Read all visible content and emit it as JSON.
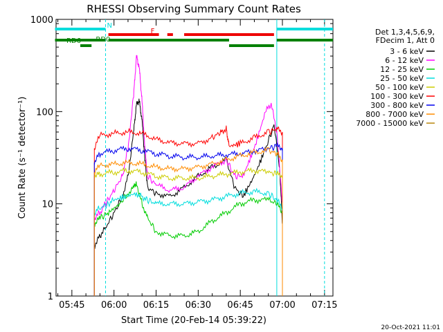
{
  "chart_data": {
    "type": "line",
    "title": "RHESSI Observing Summary Count Rates",
    "xlabel": "Start Time (20-Feb-14 05:39:22)",
    "ylabel": "Count Rate (s⁻¹ detector⁻¹)",
    "y_scale": "log",
    "ylim": [
      1,
      1000
    ],
    "xlim": [
      "05:39:22",
      "07:18:00"
    ],
    "x_ticks": [
      "05:45",
      "06:00",
      "06:15",
      "06:30",
      "06:45",
      "07:00",
      "07:15"
    ],
    "y_ticks": [
      "1",
      "10",
      "100",
      "1000"
    ],
    "footer_date": "20-Oct-2021 11:01",
    "legend_header": [
      "Det 1,3,4,5,6,9,",
      "FDecim 1, Att 0"
    ],
    "series": [
      {
        "name": "3 - 6 keV",
        "color": "#000000",
        "x": [
          "05:53",
          "05:55",
          "05:57",
          "06:00",
          "06:03",
          "06:05",
          "06:07",
          "06:08",
          "06:09",
          "06:10",
          "06:11",
          "06:12",
          "06:15",
          "06:20",
          "06:25",
          "06:30",
          "06:35",
          "06:40",
          "06:43",
          "06:46",
          "06:50",
          "06:54",
          "06:57",
          "06:59",
          "07:00"
        ],
        "y": [
          3.5,
          4.5,
          5.5,
          8,
          12,
          20,
          60,
          120,
          130,
          80,
          30,
          15,
          13,
          12,
          15,
          20,
          25,
          30,
          15,
          12,
          20,
          40,
          70,
          25,
          6
        ]
      },
      {
        "name": "6 - 12 keV",
        "color": "#ff00ff",
        "x": [
          "05:53",
          "05:55",
          "05:57",
          "06:00",
          "06:03",
          "06:05",
          "06:07",
          "06:08",
          "06:09",
          "06:10",
          "06:11",
          "06:12",
          "06:15",
          "06:20",
          "06:25",
          "06:30",
          "06:35",
          "06:40",
          "06:43",
          "06:46",
          "06:50",
          "06:54",
          "06:56",
          "06:58",
          "07:00"
        ],
        "y": [
          7,
          8,
          10,
          14,
          20,
          40,
          150,
          400,
          300,
          130,
          40,
          20,
          16,
          14,
          15,
          20,
          25,
          30,
          20,
          20,
          40,
          100,
          120,
          60,
          10
        ]
      },
      {
        "name": "12 - 25 keV",
        "color": "#00cc00",
        "x": [
          "05:53",
          "05:55",
          "05:58",
          "06:02",
          "06:05",
          "06:07",
          "06:08",
          "06:10",
          "06:12",
          "06:15",
          "06:20",
          "06:25",
          "06:30",
          "06:35",
          "06:40",
          "06:45",
          "06:50",
          "06:55",
          "06:58",
          "07:00"
        ],
        "y": [
          6,
          7,
          8,
          10,
          13,
          15,
          17,
          10,
          7,
          5,
          4.5,
          4.5,
          5,
          6.5,
          8,
          10,
          11,
          11,
          10,
          8
        ]
      },
      {
        "name": "25 - 50 keV",
        "color": "#00dddd",
        "x": [
          "05:53",
          "05:55",
          "05:58",
          "06:00",
          "06:04",
          "06:08",
          "06:10",
          "06:12",
          "06:15",
          "06:20",
          "06:25",
          "06:30",
          "06:35",
          "06:40",
          "06:45",
          "06:50",
          "06:55",
          "06:58",
          "07:00"
        ],
        "y": [
          8,
          9,
          10,
          11,
          12,
          13,
          12,
          11,
          10,
          10,
          10,
          10.5,
          11,
          12,
          13,
          13.5,
          13,
          11,
          9
        ]
      },
      {
        "name": "50 - 100 keV",
        "color": "#cccc00",
        "x": [
          "05:53",
          "05:55",
          "06:00",
          "06:05",
          "06:10",
          "06:15",
          "06:20",
          "06:25",
          "06:30",
          "06:35",
          "06:40",
          "06:45",
          "06:50",
          "06:55",
          "06:58",
          "07:00"
        ],
        "y": [
          20,
          21,
          22,
          23,
          22,
          20,
          19,
          19,
          19,
          20,
          21,
          22,
          23,
          22,
          21,
          20
        ]
      },
      {
        "name": "100 - 300 keV",
        "color": "#ff0000",
        "x": [
          "05:53",
          "05:55",
          "06:00",
          "06:05",
          "06:10",
          "06:15",
          "06:20",
          "06:25",
          "06:30",
          "06:35",
          "06:38",
          "06:40",
          "06:41",
          "06:45",
          "06:50",
          "06:55",
          "06:58",
          "07:00"
        ],
        "y": [
          40,
          55,
          58,
          60,
          58,
          50,
          46,
          45,
          45,
          52,
          60,
          65,
          42,
          45,
          52,
          60,
          65,
          60
        ]
      },
      {
        "name": "300 - 800 keV",
        "color": "#0000ee",
        "x": [
          "05:53",
          "05:55",
          "06:00",
          "06:05",
          "06:10",
          "06:15",
          "06:20",
          "06:25",
          "06:30",
          "06:35",
          "06:40",
          "06:45",
          "06:50",
          "06:55",
          "06:58",
          "07:00"
        ],
        "y": [
          28,
          35,
          38,
          40,
          38,
          35,
          33,
          32,
          32,
          33,
          34,
          35,
          37,
          40,
          42,
          40
        ]
      },
      {
        "name": "800 - 7000 keV",
        "color": "#ff8c00",
        "x": [
          "05:53",
          "05:55",
          "06:00",
          "06:05",
          "06:10",
          "06:15",
          "06:20",
          "06:25",
          "06:30",
          "06:35",
          "06:40",
          "06:45",
          "06:50",
          "06:55",
          "06:58",
          "07:00"
        ],
        "y": [
          22,
          26,
          27,
          28,
          27,
          25,
          24,
          24,
          25,
          27,
          30,
          33,
          36,
          38,
          35,
          30
        ]
      },
      {
        "name": "7000 - 15000 keV",
        "color": "#b8860b",
        "x": [],
        "y": []
      }
    ],
    "status_bars": [
      {
        "label": "N",
        "color": "#00dddd",
        "segments": [
          [
            "05:39",
            "05:57"
          ],
          [
            "06:58",
            "07:18"
          ]
        ]
      },
      {
        "label": "F",
        "color": "#ee0000",
        "segments": [
          [
            "05:58",
            "06:16"
          ],
          [
            "06:19",
            "06:21"
          ],
          [
            "06:25",
            "06:57"
          ]
        ]
      },
      {
        "label": "RD6",
        "color": "#008000",
        "segments": [
          [
            "05:39",
            "05:57"
          ],
          [
            "05:58",
            "06:41"
          ],
          [
            "06:58",
            "07:18"
          ]
        ]
      },
      {
        "label": "",
        "color": "#008000",
        "segments": [
          [
            "05:48",
            "05:52"
          ],
          [
            "06:41",
            "06:57"
          ]
        ]
      }
    ],
    "vertical_markers": [
      {
        "color": "#00dddd",
        "style": "dashed",
        "x": "05:57"
      },
      {
        "color": "#00dddd",
        "style": "solid",
        "x": "06:58"
      },
      {
        "color": "#00dddd",
        "style": "dashed",
        "x": "07:15"
      }
    ]
  }
}
